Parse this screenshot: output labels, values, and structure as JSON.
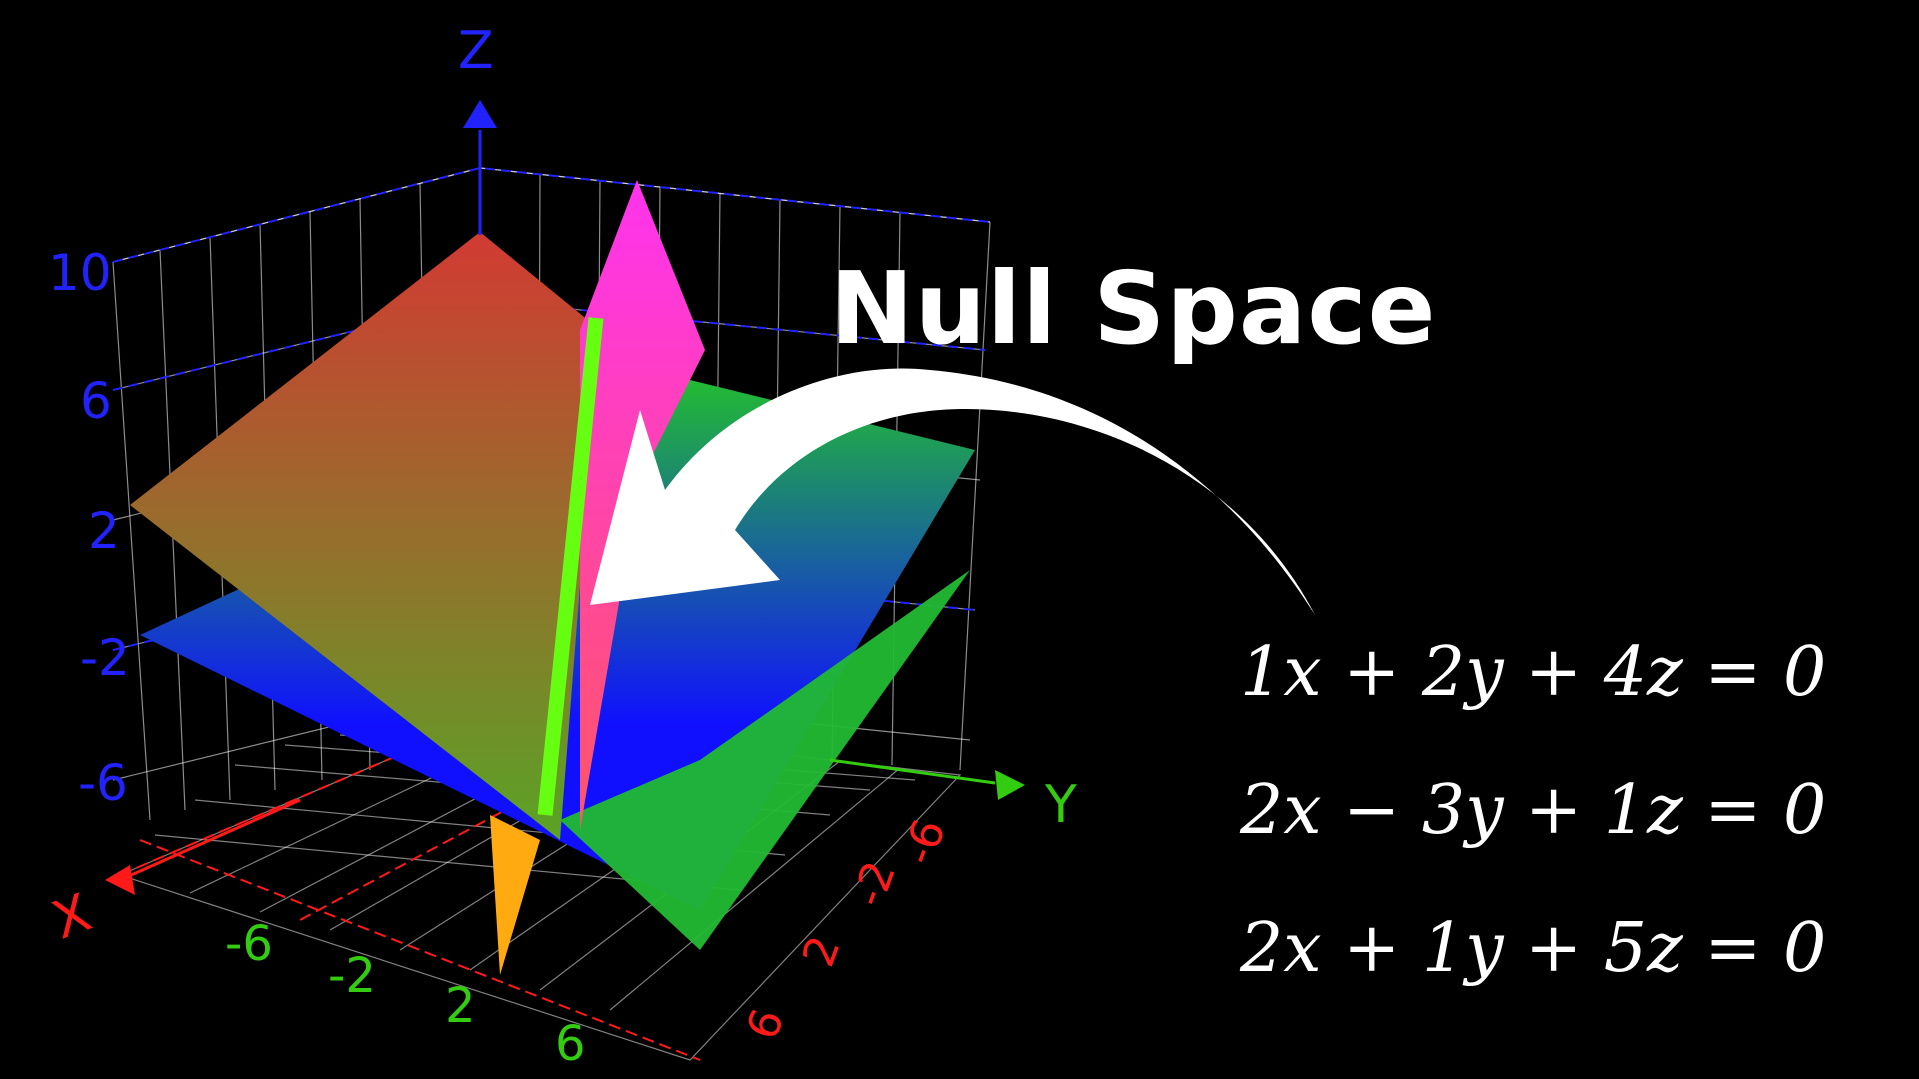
{
  "title": "Null Space",
  "equations": [
    "1x + 2y + 4z = 0",
    "2x − 3y + 1z = 0",
    "2x + 1y + 5z = 0"
  ],
  "axes": {
    "x": {
      "label": "X",
      "ticks": [
        "6",
        "2",
        "-2",
        "-6"
      ],
      "color": "#ff1a1a"
    },
    "y": {
      "label": "Y",
      "ticks": [
        "-6",
        "-2",
        "2",
        "6"
      ],
      "color": "#33cc11"
    },
    "z": {
      "label": "Z",
      "ticks": [
        "10",
        "6",
        "2",
        "-2",
        "-6"
      ],
      "color": "#1f1fff"
    }
  },
  "colors": {
    "background": "#000000",
    "null_space_line": "#66ff11",
    "plane_1_top": "#d23a32",
    "plane_1_bottom": "#5aa326",
    "plane_2_top": "#22bb33",
    "plane_2_bottom": "#1010ff",
    "plane_3": "#ff22ee",
    "plane_3_lower": "#ffaa10",
    "arrow": "#ffffff"
  }
}
